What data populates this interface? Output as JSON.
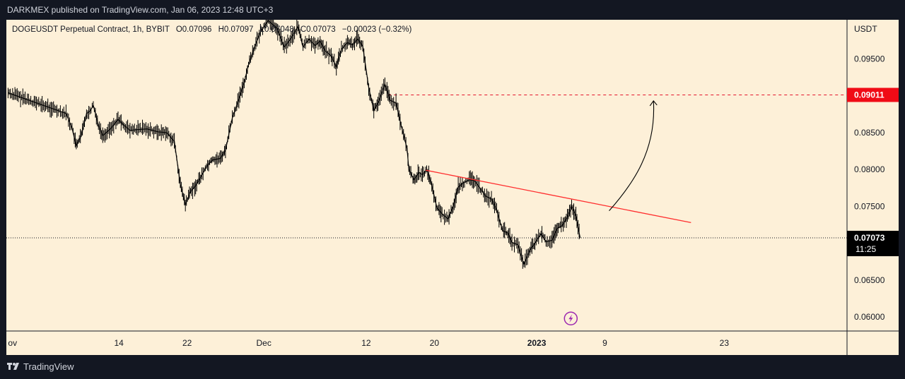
{
  "header": {
    "published_text": "DARKMEX published on TradingView.com, Jan 06, 2023 12:48 UTC+3"
  },
  "footer": {
    "brand": "TradingView"
  },
  "colors": {
    "background": "#131722",
    "chart_bg": "#fdf0d8",
    "candles": "#000000",
    "trendline": "#ff2e2e",
    "target_line": "#e3132b",
    "target_badge": "#f00b16",
    "current_badge": "#000000",
    "lightning": "#9c27b0"
  },
  "chart_data": {
    "type": "line",
    "title": "DOGEUSDT Perpetual Contract, 1h, BYBIT",
    "ohlc_text": {
      "o": "O0.07096",
      "h": "H0.07097",
      "l": "L0.07048",
      "c": "C0.07073",
      "change": "−0.00023 (−0.32%)"
    },
    "y_axis": {
      "label": "USDT",
      "ticks": [
        "0.09500",
        "0.09000",
        "0.08500",
        "0.08000",
        "0.07500",
        "0.07000",
        "0.06500",
        "0.06000"
      ],
      "ylim": [
        0.0581,
        0.1003
      ]
    },
    "x_axis": {
      "ticks": [
        {
          "label": "ov",
          "x": 0
        },
        {
          "label": "14",
          "x": 13
        },
        {
          "label": "22",
          "x": 21
        },
        {
          "label": "Dec",
          "x": 30
        },
        {
          "label": "12",
          "x": 42
        },
        {
          "label": "20",
          "x": 50
        },
        {
          "label": "2023",
          "x": 62,
          "bold": true
        },
        {
          "label": "9",
          "x": 70
        },
        {
          "label": "23",
          "x": 84
        }
      ],
      "xlim": [
        -0.2,
        98.4
      ]
    },
    "series": [
      {
        "x": [
          0,
          6.8,
          7.5,
          8.0,
          8.6,
          9.2,
          9.6,
          10.0,
          10.6,
          11.1,
          12.0,
          12.9,
          13.5,
          14.3,
          15.1,
          16.3,
          17.6,
          18.6,
          19.5,
          20.2,
          20.8,
          21.4,
          22.0,
          22.6,
          23.4,
          24.0,
          24.9,
          25.5,
          26.3,
          27.2,
          27.7,
          28.2,
          28.8,
          29.6,
          30.5,
          31.5,
          32.4,
          33.2,
          34.0,
          34.6,
          35.3,
          36.0,
          36.6,
          37.2,
          37.9,
          38.5,
          39.1,
          39.8,
          40.4,
          41.0,
          41.6,
          42.3,
          42.9,
          43.5,
          44.2,
          44.8,
          45.5,
          46.1,
          46.8,
          47.0,
          47.6,
          48.2,
          48.6,
          49.1,
          49.7,
          50.3,
          50.9,
          51.6,
          52.2,
          52.8,
          53.4,
          54.1,
          54.7,
          55.4,
          56.0,
          56.7,
          57.3,
          58.0,
          58.6,
          59.1,
          59.8,
          60.5,
          61.2,
          61.8,
          62.5,
          63.1,
          63.8,
          64.4,
          65.0,
          65.6,
          66.1,
          66.6,
          67.1
        ],
        "y": [
          0.0904,
          0.0876,
          0.0856,
          0.0832,
          0.0846,
          0.0876,
          0.0879,
          0.0887,
          0.086,
          0.0846,
          0.0855,
          0.0868,
          0.0861,
          0.0853,
          0.0854,
          0.0855,
          0.0851,
          0.085,
          0.0838,
          0.078,
          0.0752,
          0.077,
          0.0778,
          0.079,
          0.0806,
          0.0813,
          0.0815,
          0.0826,
          0.087,
          0.09,
          0.0918,
          0.0942,
          0.0963,
          0.0986,
          0.1002,
          0.0992,
          0.0966,
          0.0978,
          0.0994,
          0.0966,
          0.0977,
          0.0968,
          0.0974,
          0.0961,
          0.0954,
          0.0939,
          0.0963,
          0.0972,
          0.0969,
          0.0977,
          0.0967,
          0.0911,
          0.088,
          0.0893,
          0.0916,
          0.0894,
          0.089,
          0.086,
          0.0828,
          0.08,
          0.0786,
          0.0796,
          0.0793,
          0.08,
          0.0778,
          0.0748,
          0.074,
          0.0733,
          0.075,
          0.0776,
          0.0782,
          0.0786,
          0.0785,
          0.0774,
          0.0764,
          0.076,
          0.0745,
          0.0717,
          0.0714,
          0.0701,
          0.0698,
          0.0671,
          0.0691,
          0.07,
          0.0713,
          0.0702,
          0.0704,
          0.072,
          0.0724,
          0.0735,
          0.075,
          0.0737,
          0.0707
        ]
      }
    ],
    "current_price": {
      "value": "0.07073",
      "countdown": "11:25",
      "y": 0.07073
    },
    "target_price": {
      "value": "0.09011",
      "y": 0.09011
    },
    "annotations": {
      "trendline": {
        "from": [
          49.0,
          0.0799
        ],
        "to": [
          80.1,
          0.0728
        ]
      },
      "projection_arrow": {
        "from": [
          70.5,
          0.0744
        ],
        "to": [
          75.7,
          0.0893
        ]
      },
      "target_line_start_x": 44.6,
      "lightning_x": 66.0,
      "lightning_y": 0.0598
    }
  }
}
